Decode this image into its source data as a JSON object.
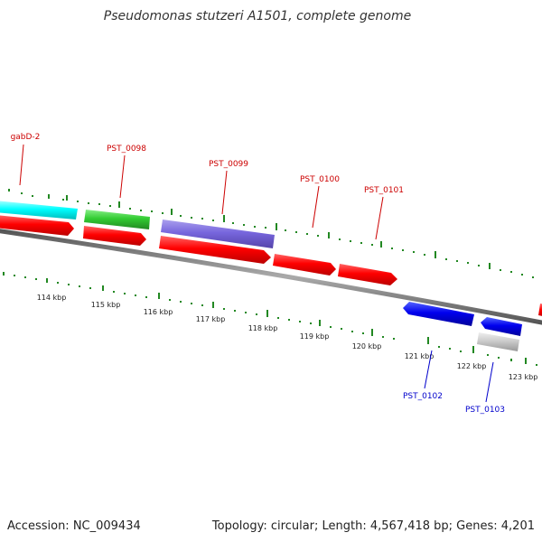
{
  "title": "Pseudomonas stutzeri A1501, complete genome",
  "footer": {
    "accession": "Accession: NC_009434",
    "summary": "Topology: circular; Length: 4,567,418 bp; Genes: 4,201"
  },
  "colors": {
    "forward_cds": "#ff0000",
    "reverse_cds": "#0000ee",
    "gene_cyan": "#00ffff",
    "gene_green": "#33cc33",
    "gene_purple": "#7766dd",
    "gene_gray": "#cccccc",
    "tick": "#228822",
    "label_forward": "#cc0000",
    "label_reverse": "#0000cc",
    "backbone": "#808080"
  },
  "scale_labels": [
    "114 kbp",
    "115 kbp",
    "116 kbp",
    "117 kbp",
    "118 kbp",
    "119 kbp",
    "120 kbp",
    "121 kbp",
    "122 kbp",
    "123 kbp"
  ],
  "gene_labels": {
    "gabD2": "gabD-2",
    "pst0098": "PST_0098",
    "pst0099": "PST_0099",
    "pst0100": "PST_0100",
    "pst0101": "PST_0101",
    "pst0102": "PST_0102",
    "pst0103": "PST_0103"
  }
}
